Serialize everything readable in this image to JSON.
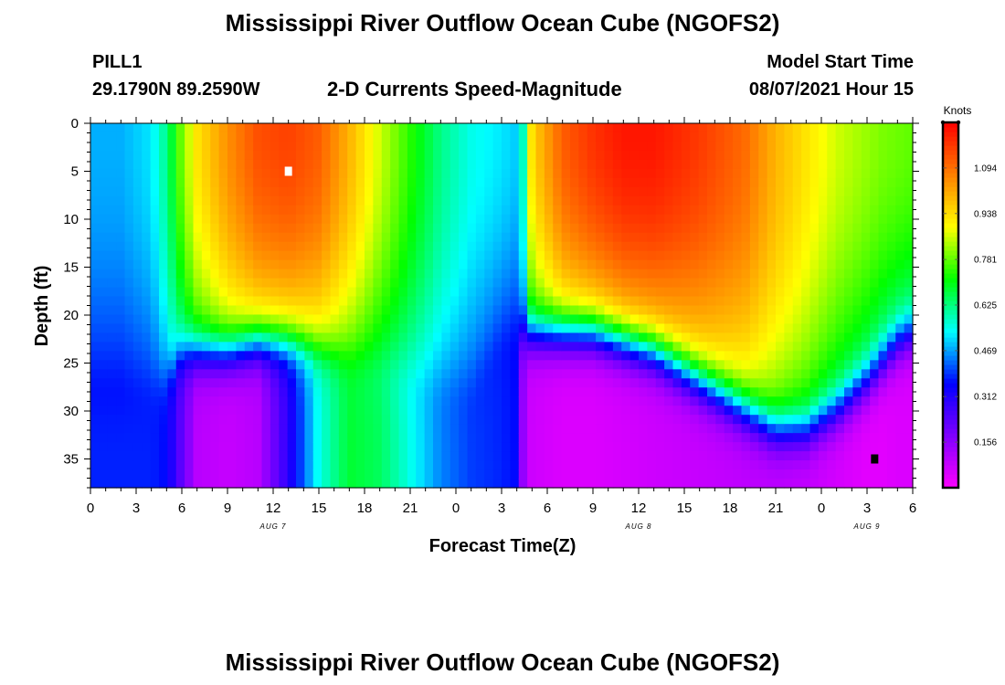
{
  "header": {
    "title": "Mississippi River Outflow Ocean Cube (NGOFS2)",
    "station": "PILL1",
    "coords": "29.1790N  89.2590W",
    "subtitle": "2-D Currents Speed-Magnitude",
    "model_start_label": "Model Start Time",
    "model_start_value": "08/07/2021 Hour 15"
  },
  "footer": {
    "title": "Mississippi River Outflow Ocean Cube (NGOFS2)"
  },
  "chart_data": {
    "type": "heatmap",
    "title": "2-D Currents Speed-Magnitude",
    "xlabel": "Forecast Time(Z)",
    "ylabel": "Depth (ft)",
    "x_ticks": [
      "0",
      "3",
      "6",
      "9",
      "12",
      "15",
      "18",
      "21",
      "0",
      "3",
      "6",
      "9",
      "12",
      "15",
      "18",
      "21",
      "0",
      "3",
      "6"
    ],
    "x_range_hours": [
      0,
      54
    ],
    "date_labels": [
      {
        "text": "AUG 7",
        "hour": 12
      },
      {
        "text": "AUG 8",
        "hour": 36
      },
      {
        "text": "AUG 9",
        "hour": 51
      }
    ],
    "y_ticks": [
      0,
      5,
      10,
      15,
      20,
      25,
      30,
      35
    ],
    "y_range_ft": [
      0,
      38
    ],
    "y_inverted": true,
    "colorbar": {
      "unit": "Knots",
      "ticks": [
        1.094,
        0.938,
        0.781,
        0.625,
        0.469,
        0.312,
        0.156
      ],
      "range": [
        0.0,
        1.25
      ],
      "colors": [
        "#ff00ff",
        "#8000ff",
        "#0000ff",
        "#00ffff",
        "#00ff00",
        "#ffff00",
        "#ff8000",
        "#ff0000"
      ]
    },
    "markers": [
      {
        "label": "max",
        "hour": 13,
        "depth_ft": 5,
        "color": "#ffffff"
      },
      {
        "label": "min",
        "hour": 51.5,
        "depth_ft": 35,
        "color": "#000000"
      }
    ],
    "speed_profile": {
      "hours": [
        0,
        2,
        4,
        5,
        6,
        7,
        9,
        11,
        13,
        15,
        17,
        19,
        21,
        23,
        25,
        27,
        28,
        28.5,
        29,
        31,
        33,
        35,
        37,
        40,
        43,
        45,
        47,
        49,
        51,
        52,
        53,
        54
      ],
      "surface_knots": [
        0.48,
        0.48,
        0.52,
        0.62,
        0.8,
        0.93,
        1.05,
        1.14,
        1.16,
        1.12,
        1.0,
        0.86,
        0.74,
        0.62,
        0.55,
        0.52,
        0.5,
        0.6,
        0.95,
        1.12,
        1.18,
        1.22,
        1.22,
        1.17,
        1.1,
        1.0,
        0.93,
        0.86,
        0.82,
        0.8,
        0.79,
        0.78
      ],
      "bottom_knots": [
        0.38,
        0.38,
        0.38,
        0.36,
        0.22,
        0.1,
        0.08,
        0.1,
        0.3,
        0.55,
        0.68,
        0.65,
        0.55,
        0.45,
        0.4,
        0.38,
        0.36,
        0.1,
        0.07,
        0.05,
        0.05,
        0.06,
        0.07,
        0.08,
        0.09,
        0.09,
        0.08,
        0.06,
        0.04,
        0.04,
        0.05,
        0.05
      ],
      "mixed_layer_ft": [
        28,
        28,
        28,
        27,
        24,
        24,
        24,
        23,
        23,
        24,
        25,
        26,
        27,
        28,
        28,
        23,
        22,
        22,
        22,
        22,
        22,
        23,
        24,
        27,
        30,
        32,
        32,
        30,
        27,
        25,
        23,
        22
      ]
    }
  }
}
